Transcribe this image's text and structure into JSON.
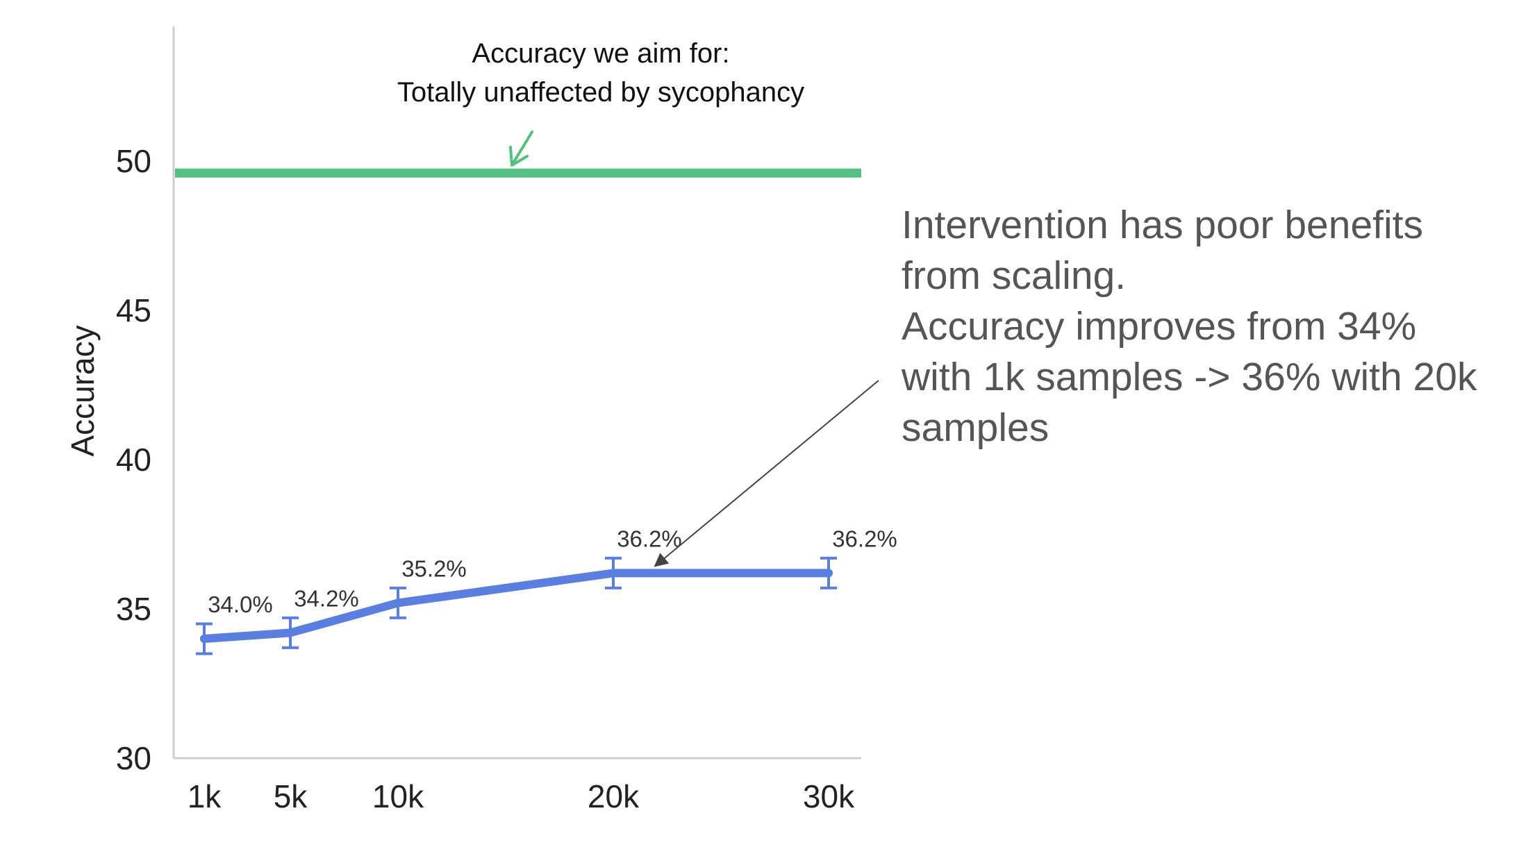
{
  "chart_data": {
    "type": "line",
    "ylabel": "Accuracy",
    "xlabel": "",
    "ylim": [
      30,
      54
    ],
    "y_ticks": [
      "30",
      "35",
      "40",
      "45",
      "50"
    ],
    "categories": [
      "1k",
      "5k",
      "10k",
      "20k",
      "30k"
    ],
    "x": [
      1,
      5,
      10,
      20,
      30
    ],
    "series": [
      {
        "name": "Accuracy",
        "values": [
          34.0,
          34.2,
          35.2,
          36.2,
          36.2
        ],
        "error": [
          0.5,
          0.5,
          0.5,
          0.5,
          0.5
        ],
        "data_labels": [
          "34.0%",
          "34.2%",
          "35.2%",
          "36.2%",
          "36.2%"
        ],
        "color": "#5b7fe0"
      }
    ],
    "reference_line": {
      "value": 49.6,
      "color": "#52c081",
      "caption_lines": [
        "Accuracy we aim for:",
        "Totally unaffected by sycophancy"
      ]
    },
    "annotation": {
      "lines": [
        "Intervention has poor benefits",
        "from scaling.",
        "Accuracy improves from 34%",
        "with 1k samples -> 36% with 20k",
        "samples"
      ],
      "points_to_x": 20
    },
    "grid": false
  }
}
